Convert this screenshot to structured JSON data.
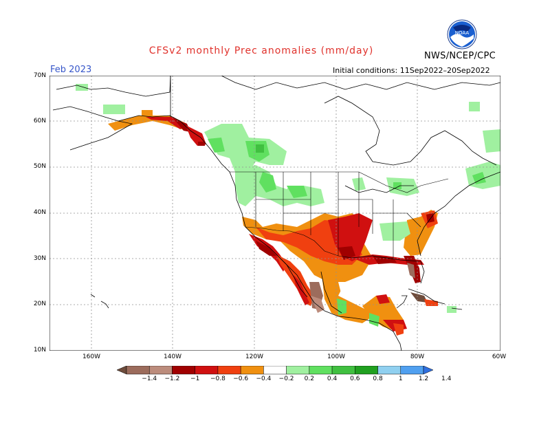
{
  "title": "CFSv2 monthly Prec anomalies (mm/day)",
  "organization": "NWS/NCEP/CPC",
  "logo": {
    "text": "NOAA",
    "icon": "noaa-logo-icon"
  },
  "forecast_month": "Feb 2023",
  "initial_conditions": "Initial conditions: 11Sep2022–20Sep2022",
  "latitude_labels": [
    "70N",
    "60N",
    "50N",
    "40N",
    "30N",
    "20N",
    "10N"
  ],
  "longitude_labels": [
    "160W",
    "140W",
    "120W",
    "100W",
    "80W",
    "60W"
  ],
  "colorbar": {
    "labels": [
      "−1.4",
      "−1.2",
      "−1",
      "−0.8",
      "−0.6",
      "−0.4",
      "−0.2",
      "0.2",
      "0.4",
      "0.6",
      "0.8",
      "1",
      "1.2",
      "1.4"
    ],
    "colors": [
      "#6e4c3c",
      "#9c6c5c",
      "#bc8c7c",
      "#a00000",
      "#d01010",
      "#f04010",
      "#f09010",
      "#ffffff",
      "#a0f0a0",
      "#60e060",
      "#40c040",
      "#20a020",
      "#90d0f0",
      "#50a0f0",
      "#3070e0"
    ]
  },
  "colors": {
    "title": "#e0312b",
    "month_label": "#3656c9",
    "grid": "#909090"
  }
}
